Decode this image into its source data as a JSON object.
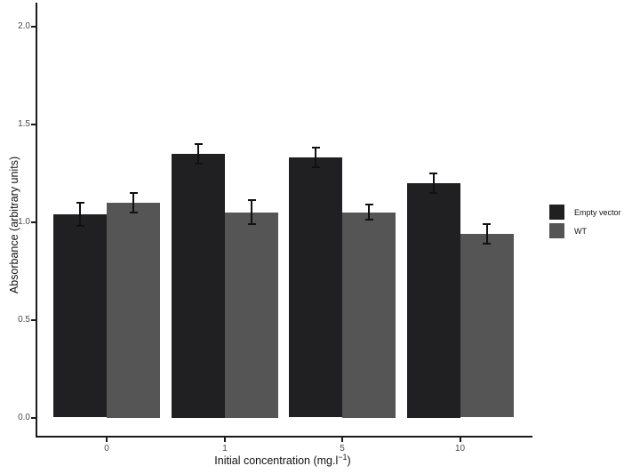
{
  "figure": {
    "background": "#ffffff",
    "axis_color": "#1a1a1a",
    "tick_label_color": "#4a4a4a"
  },
  "chart_data": {
    "type": "bar",
    "title": "",
    "xlabel": {
      "prefix": "Initial concentration (mg.l",
      "superscript": "−1",
      "suffix": ")"
    },
    "ylabel": "Absorbance (arbitrary units)",
    "categories": [
      "0",
      "1",
      "5",
      "10"
    ],
    "series": [
      {
        "name": "Empty vector",
        "color": "#202022",
        "values": [
          1.04,
          1.35,
          1.33,
          1.2
        ],
        "errors_upper": [
          0.06,
          0.05,
          0.05,
          0.05
        ]
      },
      {
        "name": "WT",
        "color": "#555555",
        "values": [
          1.1,
          1.05,
          1.05,
          0.94
        ],
        "errors_upper": [
          0.05,
          0.06,
          0.04,
          0.05
        ]
      }
    ],
    "ylim": [
      0,
      2.0
    ],
    "yticks": [
      0.0,
      0.5,
      1.0,
      1.5,
      2.0
    ],
    "ytick_labels": [
      "0.0",
      "0.5",
      "1.0",
      "1.5",
      "2.0"
    ],
    "grid": false,
    "error_bars": "caps-both-ends",
    "legend_position": "right-middle"
  }
}
